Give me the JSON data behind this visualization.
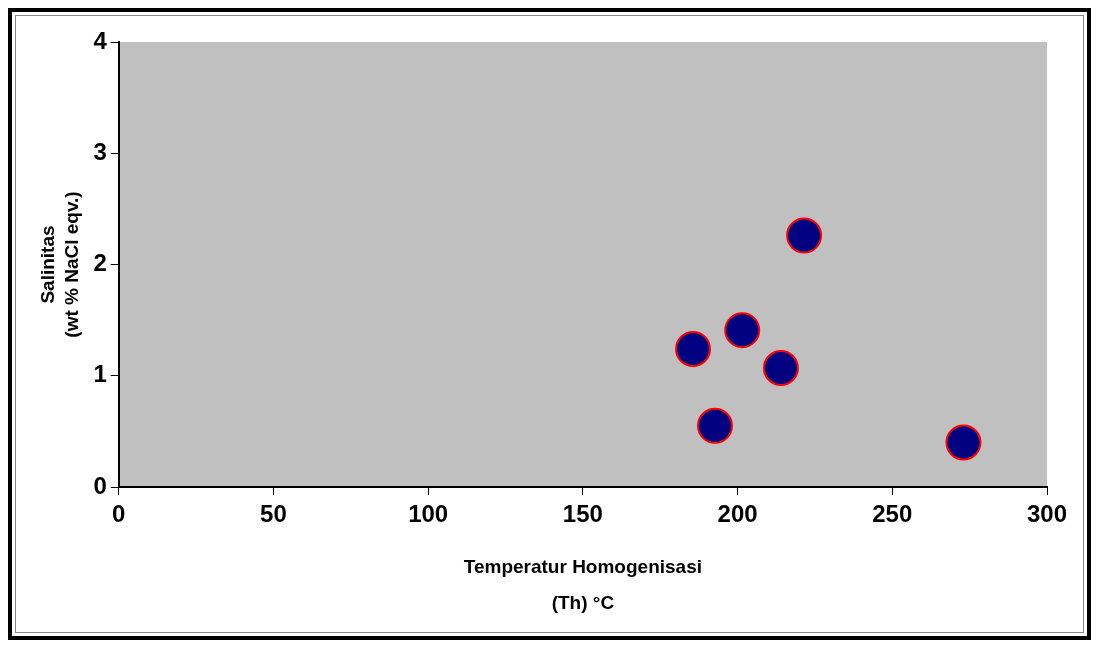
{
  "chart_data": {
    "type": "scatter",
    "xlabel": "Temperatur Homogenisasi\n(Th) °C",
    "ylabel": "Salinitas\n(wt % NaCl eqv.)",
    "xlim": [
      0,
      300
    ],
    "xticks": [
      0,
      50,
      100,
      150,
      200,
      250,
      300
    ],
    "ylim": [
      0,
      4
    ],
    "yticks": [
      0,
      1,
      2,
      3,
      4
    ],
    "grid": false,
    "legend": false,
    "marker": "circle",
    "series": [
      {
        "color": "#000080",
        "x": [
          185.6,
          192.7,
          201.5,
          214,
          221.5,
          273
        ],
        "values": [
          1.24,
          0.55,
          1.41,
          1.07,
          2.26,
          0.4
        ]
      }
    ]
  }
}
